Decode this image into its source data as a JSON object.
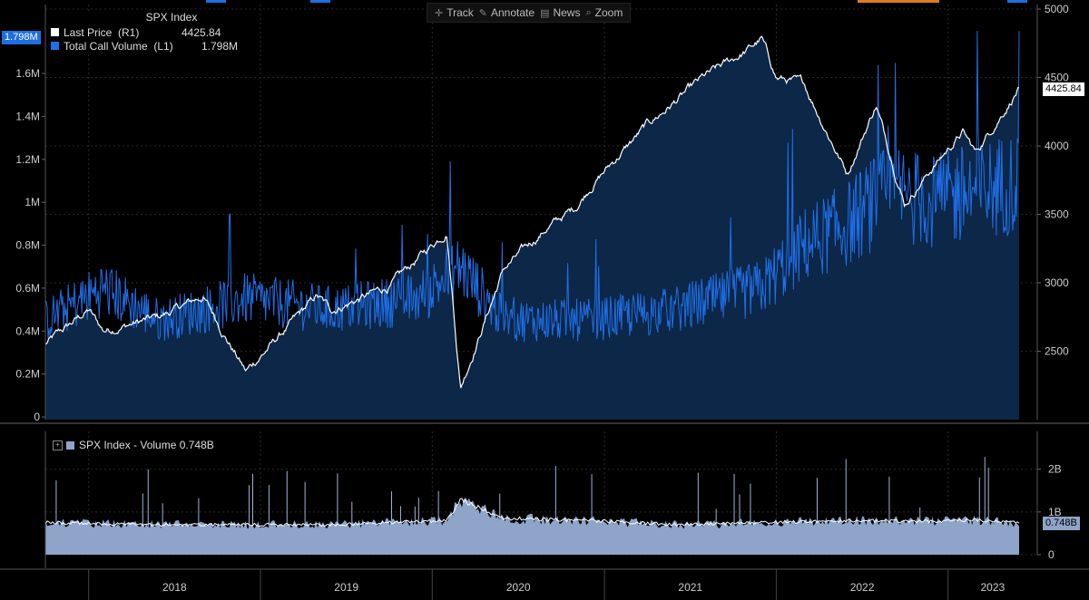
{
  "toolbar": {
    "track": "Track",
    "annotate": "Annotate",
    "news": "News",
    "zoom": "Zoom"
  },
  "legend": {
    "title": "SPX Index",
    "price_label": "Last Price  (R1)",
    "price_value": "4425.84",
    "volume_label": "Total Call Volume  (L1)",
    "volume_value": "1.798M"
  },
  "lower_legend": {
    "label": "SPX Index - Volume 0.748B"
  },
  "badges": {
    "left_volume": "1.798M",
    "right_price": "4425.84",
    "right_index_volume": "0.748B"
  },
  "colors": {
    "price_line": "#ffffff",
    "price_fill": "#0c2747",
    "call_volume": "#1f6fe8",
    "index_volume": "#8ea4c8",
    "badge_blue": "#1f6fe0"
  },
  "chart_data": [
    {
      "type": "line",
      "title": "SPX Index",
      "x_axis": {
        "ticks": [
          "2018",
          "2019",
          "2020",
          "2021",
          "2022",
          "2023"
        ]
      },
      "y_right": {
        "ticks": [
          "5000",
          "4500",
          "4000",
          "3500",
          "3000",
          "2500"
        ],
        "range": [
          2000,
          5000
        ]
      },
      "y_left": {
        "ticks": [
          "1.6M",
          "1.4M",
          "1.2M",
          "1M",
          "0.8M",
          "0.6M",
          "0.4M",
          "0.2M",
          "0"
        ],
        "range": [
          0,
          1.9
        ]
      },
      "series": [
        {
          "name": "Last Price",
          "axis": "R1",
          "x": [
            "2017-10",
            "2018-01",
            "2018-02",
            "2018-06",
            "2018-09",
            "2018-12",
            "2019-05",
            "2019-06",
            "2019-10",
            "2020-02",
            "2020-03",
            "2020-06",
            "2020-09",
            "2020-11",
            "2020-12",
            "2021-04",
            "2021-08",
            "2021-11",
            "2021-12",
            "2022-01",
            "2022-03",
            "2022-06",
            "2022-08",
            "2022-10",
            "2022-12",
            "2023-02",
            "2023-03",
            "2023-06"
          ],
          "values": [
            2550,
            2800,
            2650,
            2750,
            2900,
            2350,
            2900,
            2800,
            2970,
            3380,
            2240,
            3100,
            3400,
            3550,
            3700,
            4150,
            4500,
            4700,
            4780,
            4500,
            4450,
            3800,
            4300,
            3580,
            3850,
            4100,
            3950,
            4425.84
          ]
        },
        {
          "name": "Total Call Volume",
          "axis": "L1",
          "x": [
            "2017-10",
            "2018-02",
            "2018-06",
            "2018-12",
            "2019-06",
            "2019-12",
            "2020-03",
            "2020-06",
            "2020-12",
            "2021-06",
            "2021-12",
            "2022-03",
            "2022-06",
            "2022-09",
            "2022-12",
            "2023-03",
            "2023-06"
          ],
          "values": [
            0.45,
            0.6,
            0.45,
            0.55,
            0.5,
            0.55,
            0.7,
            0.45,
            0.45,
            0.5,
            0.6,
            0.8,
            0.9,
            1.05,
            1.0,
            1.05,
            1.798
          ]
        }
      ]
    },
    {
      "type": "bar",
      "title": "SPX Index - Volume",
      "y_right": {
        "ticks": [
          "2B",
          "1B",
          "0"
        ],
        "range": [
          0,
          2.8
        ]
      },
      "series": [
        {
          "name": "SPX Index - Volume",
          "x": [
            "2017-10",
            "2018-06",
            "2019-06",
            "2020-02",
            "2020-03",
            "2020-06",
            "2020-12",
            "2021-06",
            "2021-12",
            "2022-06",
            "2022-12",
            "2023-03",
            "2023-06"
          ],
          "values": [
            0.75,
            0.7,
            0.7,
            0.8,
            1.3,
            0.85,
            0.8,
            0.7,
            0.75,
            0.8,
            0.78,
            0.82,
            0.748
          ]
        }
      ]
    }
  ]
}
